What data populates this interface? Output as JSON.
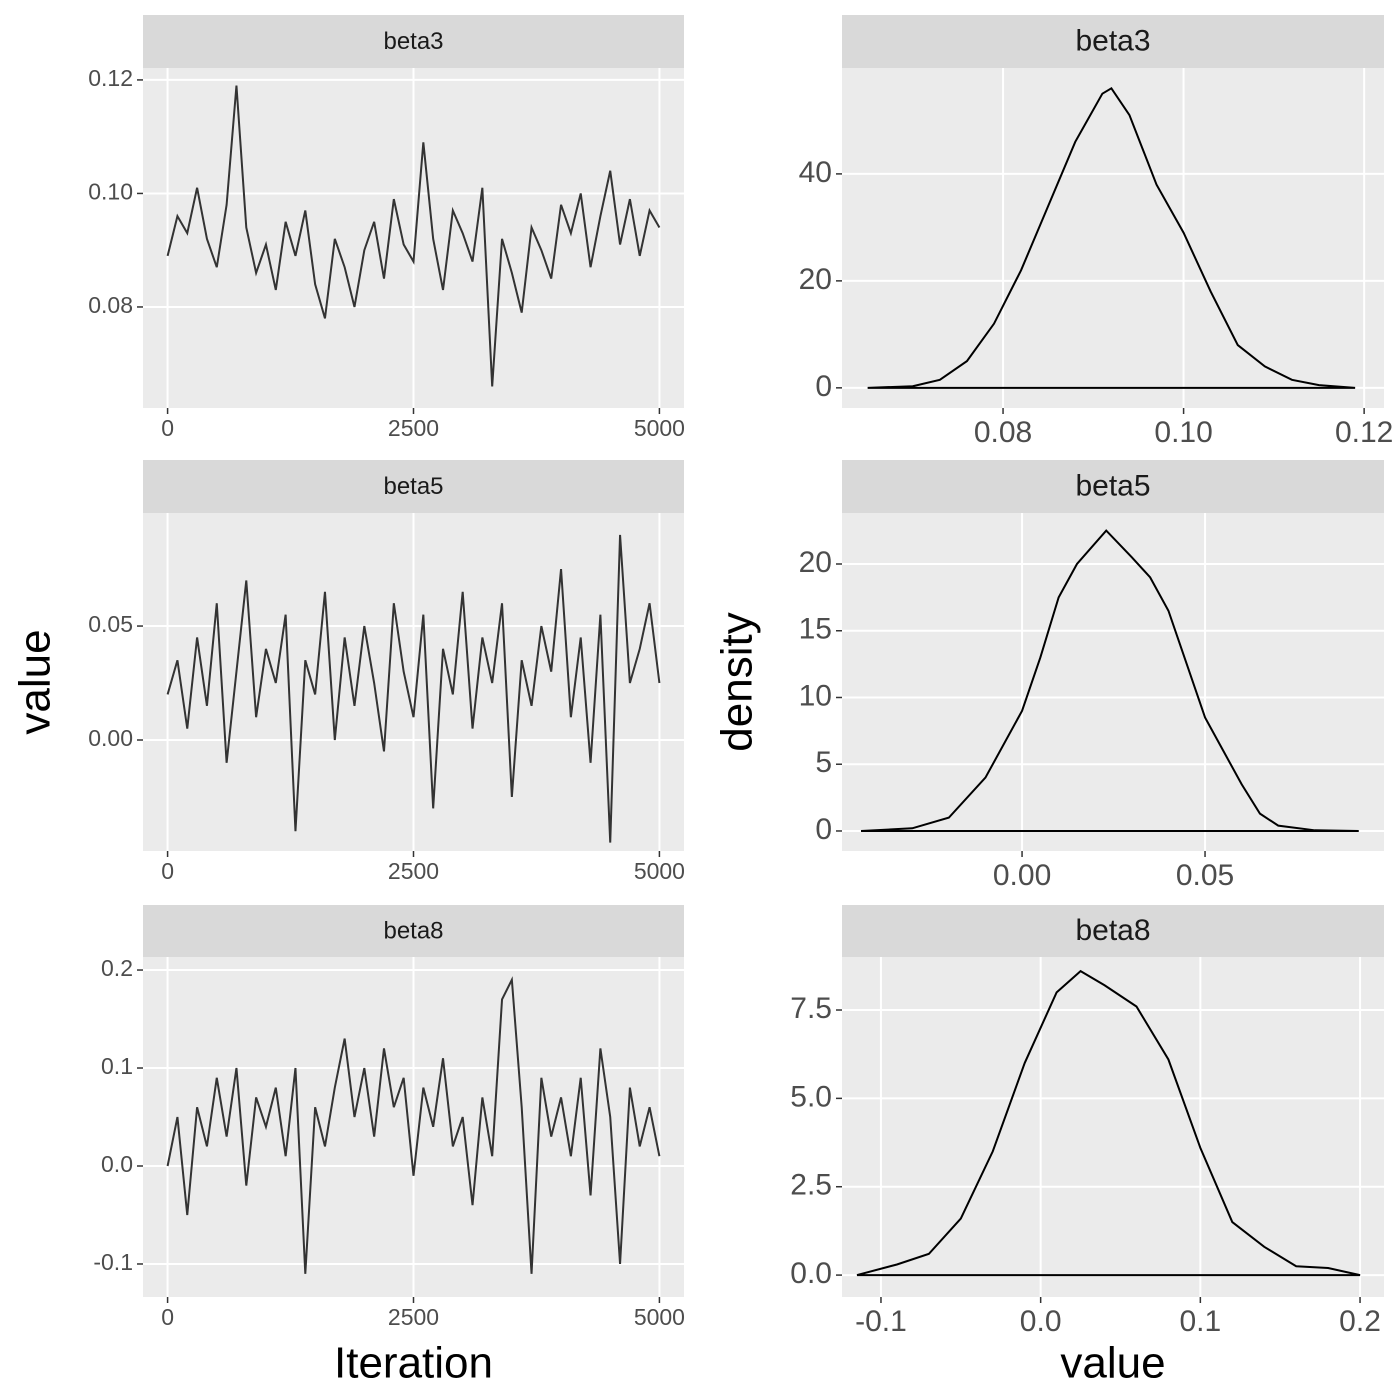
{
  "chart_data": [
    {
      "type": "line",
      "title": "beta3",
      "color": "#333333",
      "grid": true,
      "x": [
        0,
        100,
        200,
        300,
        400,
        500,
        600,
        700,
        800,
        900,
        1000,
        1100,
        1200,
        1300,
        1400,
        1500,
        1600,
        1700,
        1800,
        1900,
        2000,
        2100,
        2200,
        2300,
        2400,
        2500,
        2600,
        2700,
        2800,
        2900,
        3000,
        3100,
        3200,
        3300,
        3400,
        3500,
        3600,
        3700,
        3800,
        3900,
        4000,
        4100,
        4200,
        4300,
        4400,
        4500,
        4600,
        4700,
        4800,
        4900,
        5000
      ],
      "values": [
        0.089,
        0.096,
        0.093,
        0.101,
        0.092,
        0.087,
        0.098,
        0.119,
        0.094,
        0.086,
        0.091,
        0.083,
        0.095,
        0.089,
        0.097,
        0.084,
        0.078,
        0.092,
        0.087,
        0.08,
        0.09,
        0.095,
        0.085,
        0.099,
        0.091,
        0.088,
        0.109,
        0.092,
        0.083,
        0.097,
        0.093,
        0.088,
        0.101,
        0.066,
        0.092,
        0.086,
        0.079,
        0.094,
        0.09,
        0.085,
        0.098,
        0.093,
        0.1,
        0.087,
        0.096,
        0.104,
        0.091,
        0.099,
        0.089,
        0.097,
        0.094
      ],
      "xlim": [
        -250,
        5250
      ],
      "xticks": [
        0,
        2500,
        5000
      ],
      "ylim": [
        0.0622,
        0.1221
      ],
      "yticks": [
        0.08,
        {
          "value": 0.1,
          "label": "0.10"
        },
        0.12
      ]
    },
    {
      "type": "line",
      "title": "beta5",
      "color": "#333333",
      "grid": true,
      "ylabel": "value",
      "x": [
        0,
        100,
        200,
        300,
        400,
        500,
        600,
        700,
        800,
        900,
        1000,
        1100,
        1200,
        1300,
        1400,
        1500,
        1600,
        1700,
        1800,
        1900,
        2000,
        2100,
        2200,
        2300,
        2400,
        2500,
        2600,
        2700,
        2800,
        2900,
        3000,
        3100,
        3200,
        3300,
        3400,
        3500,
        3600,
        3700,
        3800,
        3900,
        4000,
        4100,
        4200,
        4300,
        4400,
        4500,
        4600,
        4700,
        4800,
        4900,
        5000
      ],
      "values": [
        0.02,
        0.035,
        0.005,
        0.045,
        0.015,
        0.06,
        -0.01,
        0.03,
        0.07,
        0.01,
        0.04,
        0.025,
        0.055,
        -0.04,
        0.035,
        0.02,
        0.065,
        0.0,
        0.045,
        0.015,
        0.05,
        0.025,
        -0.005,
        0.06,
        0.03,
        0.01,
        0.055,
        -0.03,
        0.04,
        0.02,
        0.065,
        0.005,
        0.045,
        0.025,
        0.06,
        -0.025,
        0.035,
        0.015,
        0.05,
        0.03,
        0.075,
        0.01,
        0.045,
        -0.01,
        0.055,
        -0.045,
        0.09,
        0.025,
        0.04,
        0.06,
        0.025
      ],
      "xlim": [
        -250,
        5250
      ],
      "xticks": [
        0,
        2500,
        5000
      ],
      "ylim": [
        -0.0487,
        0.0996
      ],
      "yticks": [
        {
          "value": 0,
          "label": "0.00"
        },
        0.05
      ]
    },
    {
      "type": "line",
      "title": "beta8",
      "color": "#333333",
      "grid": true,
      "xlabel": "Iteration",
      "x": [
        0,
        100,
        200,
        300,
        400,
        500,
        600,
        700,
        800,
        900,
        1000,
        1100,
        1200,
        1300,
        1400,
        1500,
        1600,
        1700,
        1800,
        1900,
        2000,
        2100,
        2200,
        2300,
        2400,
        2500,
        2600,
        2700,
        2800,
        2900,
        3000,
        3100,
        3200,
        3300,
        3400,
        3500,
        3600,
        3700,
        3800,
        3900,
        4000,
        4100,
        4200,
        4300,
        4400,
        4500,
        4600,
        4700,
        4800,
        4900,
        5000
      ],
      "values": [
        0.0,
        0.05,
        -0.05,
        0.06,
        0.02,
        0.09,
        0.03,
        0.1,
        -0.02,
        0.07,
        0.04,
        0.08,
        0.01,
        0.1,
        -0.11,
        0.06,
        0.02,
        0.08,
        0.13,
        0.05,
        0.1,
        0.03,
        0.12,
        0.06,
        0.09,
        -0.01,
        0.08,
        0.04,
        0.11,
        0.02,
        0.05,
        -0.04,
        0.07,
        0.01,
        0.17,
        0.19,
        0.06,
        -0.11,
        0.09,
        0.03,
        0.07,
        0.01,
        0.09,
        -0.03,
        0.12,
        0.05,
        -0.1,
        0.08,
        0.02,
        0.06,
        0.01
      ],
      "xlim": [
        -250,
        5250
      ],
      "xticks": [
        0,
        2500,
        5000
      ],
      "ylim": [
        -0.1337,
        0.2133
      ],
      "yticks": [
        -0.1,
        {
          "value": 0,
          "label": "0.0"
        },
        0.1,
        0.2
      ]
    },
    {
      "type": "density",
      "title": "beta3",
      "color": "#000000",
      "grid": true,
      "x": [
        0.065,
        0.07,
        0.073,
        0.076,
        0.079,
        0.082,
        0.085,
        0.088,
        0.091,
        0.092,
        0.094,
        0.097,
        0.1,
        0.103,
        0.106,
        0.109,
        0.112,
        0.115,
        0.119
      ],
      "values": [
        0,
        0.3,
        1.5,
        5,
        12,
        22,
        34,
        46,
        55,
        56,
        51,
        38,
        29,
        18,
        8,
        4,
        1.5,
        0.5,
        0
      ],
      "xlim": [
        0.06216,
        0.1222
      ],
      "xticks": [
        0.08,
        {
          "value": 0.1,
          "label": "0.10"
        },
        0.12
      ],
      "ylim": [
        -3.77,
        59.8
      ],
      "yticks": [
        0,
        20,
        40
      ]
    },
    {
      "type": "density",
      "title": "beta5",
      "color": "#000000",
      "grid": true,
      "ylabel": "density",
      "x": [
        -0.044,
        -0.03,
        -0.02,
        -0.01,
        0.0,
        0.005,
        0.01,
        0.015,
        0.023,
        0.03,
        0.035,
        0.04,
        0.045,
        0.05,
        0.055,
        0.06,
        0.065,
        0.07,
        0.08,
        0.092
      ],
      "values": [
        0,
        0.2,
        1,
        4,
        9,
        13,
        17.5,
        20,
        22.5,
        20.5,
        19,
        16.5,
        12.5,
        8.5,
        6,
        3.5,
        1.3,
        0.4,
        0.05,
        0
      ],
      "xlim": [
        -0.0492,
        0.0989
      ],
      "xticks": [
        {
          "value": 0,
          "label": "0.00"
        },
        0.05
      ],
      "ylim": [
        -1.5,
        23.82
      ],
      "yticks": [
        0,
        5,
        10,
        15,
        20
      ]
    },
    {
      "type": "density",
      "title": "beta8",
      "color": "#000000",
      "grid": true,
      "xlabel": "value",
      "x": [
        -0.115,
        -0.09,
        -0.07,
        -0.05,
        -0.03,
        -0.01,
        0.01,
        0.025,
        0.04,
        0.06,
        0.08,
        0.1,
        0.12,
        0.14,
        0.16,
        0.18,
        0.2
      ],
      "values": [
        0,
        0.3,
        0.6,
        1.6,
        3.5,
        6,
        8,
        8.6,
        8.2,
        7.6,
        6.1,
        3.6,
        1.5,
        0.8,
        0.25,
        0.2,
        0
      ],
      "xlim": [
        -0.1244,
        0.215
      ],
      "xticks": [
        -0.1,
        {
          "value": 0,
          "label": "0.0"
        },
        0.1,
        0.2
      ],
      "ylim": [
        -0.62,
        9.0
      ],
      "yticks": [
        {
          "value": 0,
          "label": "0.0"
        },
        2.5,
        {
          "value": 5,
          "label": "5.0"
        },
        7.5
      ]
    }
  ]
}
